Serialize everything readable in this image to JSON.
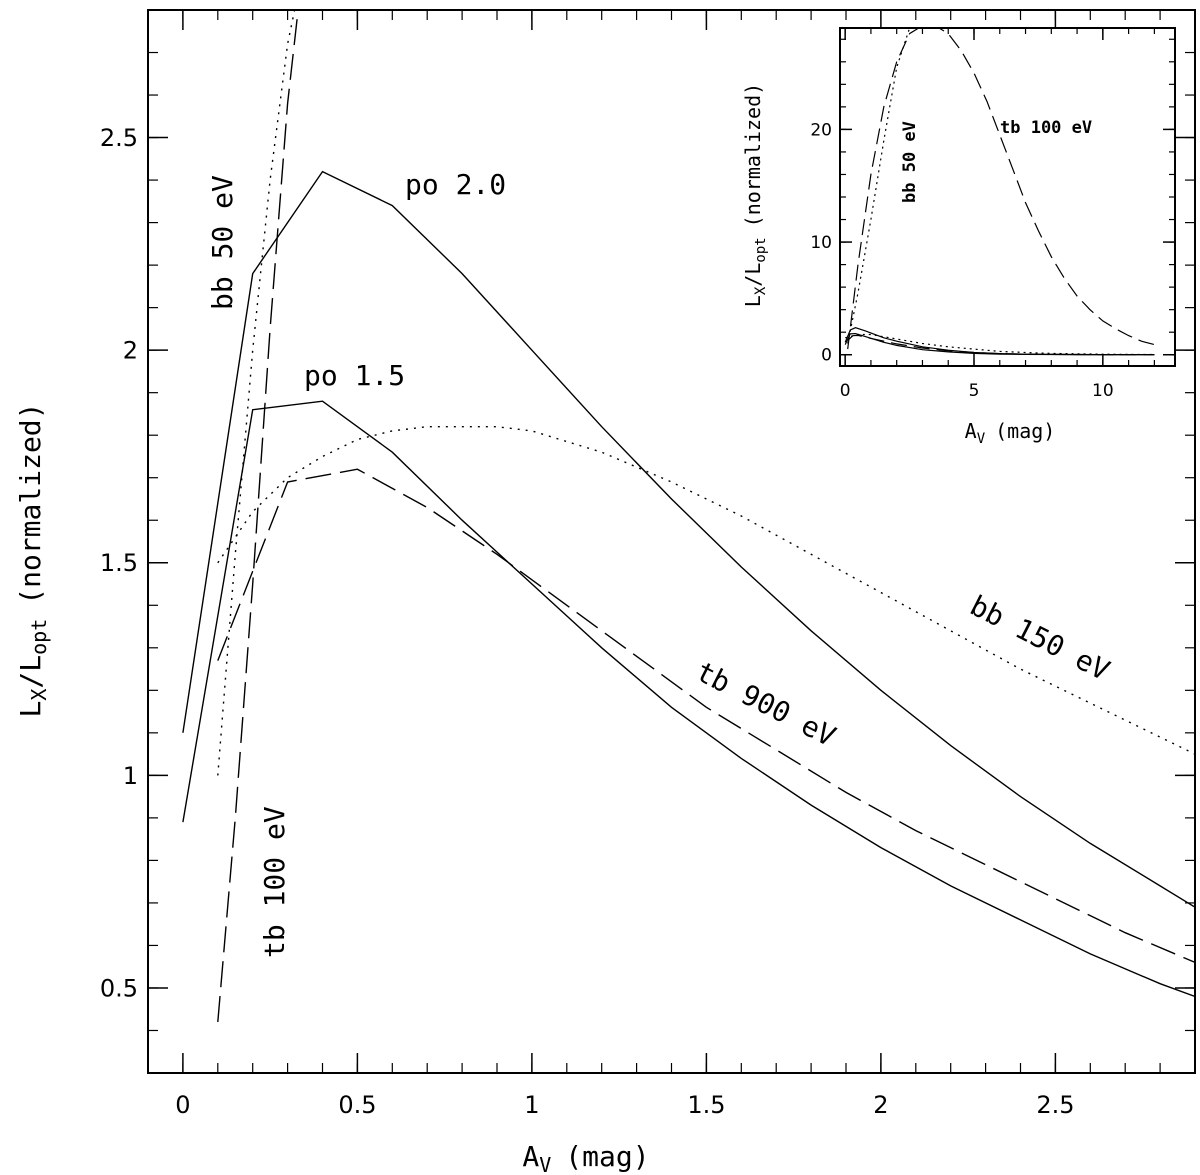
{
  "chart_data": [
    {
      "type": "line",
      "xlabel": "A",
      "xlabel_sub": "V",
      "xlabel_unit": "(mag)",
      "ylabel": "L",
      "ylabel_sub1": "X",
      "ylabel_mid": "/L",
      "ylabel_sub2": "opt",
      "ylabel_unit": "(normalized)",
      "xlim": [
        -0.1,
        2.9
      ],
      "ylim": [
        0.3,
        2.8
      ],
      "xticks": [
        0,
        0.5,
        1,
        1.5,
        2,
        2.5
      ],
      "xtick_labels": [
        "0",
        "0.5",
        "1",
        "1.5",
        "2",
        "2.5"
      ],
      "yticks": [
        0.5,
        1,
        1.5,
        2,
        2.5
      ],
      "ytick_labels": [
        "0.5",
        "1",
        "1.5",
        "2",
        "2.5"
      ],
      "series": [
        {
          "name": "po 2.0",
          "style": "solid",
          "x": [
            0,
            0.2,
            0.4,
            0.6,
            0.8,
            1.0,
            1.2,
            1.4,
            1.6,
            1.8,
            2.0,
            2.2,
            2.4,
            2.6,
            2.8,
            2.9
          ],
          "y": [
            1.1,
            2.18,
            2.42,
            2.34,
            2.18,
            2.0,
            1.82,
            1.65,
            1.49,
            1.34,
            1.2,
            1.07,
            0.95,
            0.84,
            0.74,
            0.69
          ]
        },
        {
          "name": "po 1.5",
          "style": "solid",
          "x": [
            0,
            0.2,
            0.4,
            0.6,
            0.8,
            1.0,
            1.2,
            1.4,
            1.6,
            1.8,
            2.0,
            2.2,
            2.4,
            2.6,
            2.8,
            2.9
          ],
          "y": [
            0.89,
            1.86,
            1.88,
            1.76,
            1.6,
            1.45,
            1.3,
            1.16,
            1.04,
            0.93,
            0.83,
            0.74,
            0.66,
            0.58,
            0.51,
            0.48
          ]
        },
        {
          "name": "tb 900 eV",
          "style": "dashed",
          "x": [
            0.1,
            0.2,
            0.3,
            0.5,
            0.7,
            0.9,
            1.1,
            1.3,
            1.5,
            1.7,
            1.9,
            2.1,
            2.3,
            2.5,
            2.7,
            2.9
          ],
          "y": [
            1.27,
            1.48,
            1.69,
            1.72,
            1.63,
            1.52,
            1.4,
            1.28,
            1.16,
            1.06,
            0.96,
            0.87,
            0.79,
            0.71,
            0.63,
            0.56
          ]
        },
        {
          "name": "bb 150 eV",
          "style": "dotted",
          "x": [
            0.1,
            0.2,
            0.3,
            0.4,
            0.5,
            0.6,
            0.7,
            0.8,
            0.9,
            1.0,
            1.2,
            1.4,
            1.6,
            1.8,
            2.0,
            2.2,
            2.4,
            2.6,
            2.8,
            2.9
          ],
          "y": [
            1.5,
            1.62,
            1.7,
            1.75,
            1.79,
            1.81,
            1.82,
            1.82,
            1.82,
            1.81,
            1.76,
            1.69,
            1.61,
            1.52,
            1.43,
            1.34,
            1.25,
            1.17,
            1.09,
            1.05
          ]
        },
        {
          "name": "bb 50 eV",
          "style": "dotted",
          "x": [
            0.1,
            0.15,
            0.2,
            0.25,
            0.3,
            0.32
          ],
          "y": [
            1.0,
            1.52,
            2.0,
            2.4,
            2.72,
            2.8
          ]
        },
        {
          "name": "tb 100 eV",
          "style": "dashed",
          "x": [
            0.1,
            0.15,
            0.2,
            0.25,
            0.3,
            0.33
          ],
          "y": [
            0.42,
            0.9,
            1.45,
            2.05,
            2.58,
            2.8
          ]
        }
      ],
      "annotations": [
        "po 2.0",
        "po 1.5",
        "bb 150 eV",
        "tb 900 eV",
        "bb 50 eV",
        "tb 100 eV"
      ]
    },
    {
      "type": "line",
      "role": "inset",
      "xlabel": "A",
      "xlabel_sub": "V",
      "xlabel_unit": "(mag)",
      "ylabel": "L",
      "ylabel_sub1": "X",
      "ylabel_mid": "/L",
      "ylabel_sub2": "opt",
      "ylabel_unit": "(normalized)",
      "xlim": [
        -0.2,
        12.8
      ],
      "ylim": [
        -1,
        29
      ],
      "xticks": [
        0,
        5,
        10
      ],
      "xtick_labels": [
        "0",
        "5",
        "10"
      ],
      "yticks": [
        0,
        10,
        20
      ],
      "ytick_labels": [
        "0",
        "10",
        "20"
      ],
      "series": [
        {
          "name": "tb 100 eV",
          "style": "dashed",
          "x": [
            0.1,
            0.5,
            1,
            1.5,
            2,
            2.5,
            3,
            3.5,
            4,
            4.5,
            5,
            5.5,
            6,
            6.5,
            7,
            7.5,
            8,
            8.5,
            9,
            9.5,
            10,
            10.5,
            11,
            11.5,
            12
          ],
          "y": [
            0.5,
            8,
            16,
            22,
            26,
            28.5,
            29.2,
            29.2,
            28.5,
            27,
            25,
            22.5,
            19.5,
            16.5,
            13.5,
            11,
            8.7,
            6.8,
            5.2,
            4.0,
            3.0,
            2.3,
            1.7,
            1.2,
            0.9
          ]
        },
        {
          "name": "bb 50 eV",
          "style": "dotted",
          "x": [
            0.1,
            0.5,
            1,
            1.5,
            2,
            2.5,
            3
          ],
          "y": [
            1.0,
            5.5,
            12,
            19,
            25.5,
            29,
            29.5
          ]
        },
        {
          "name": "bb 150 eV",
          "style": "dotted",
          "x": [
            0,
            0.5,
            1,
            2,
            3,
            4,
            5,
            6,
            7,
            8,
            9,
            10,
            11,
            12
          ],
          "y": [
            1.5,
            1.8,
            1.8,
            1.4,
            1.0,
            0.7,
            0.5,
            0.3,
            0.2,
            0.12,
            0.08,
            0.05,
            0.03,
            0.02
          ]
        },
        {
          "name": "po 2.0",
          "style": "solid",
          "x": [
            0,
            0.2,
            0.4,
            0.8,
            1.5,
            2,
            3,
            4,
            5,
            6,
            7,
            8,
            9,
            10,
            11,
            12
          ],
          "y": [
            1.1,
            2.2,
            2.4,
            2.1,
            1.5,
            1.2,
            0.7,
            0.4,
            0.2,
            0.1,
            0.05,
            0.03,
            0.02,
            0.01,
            0.01,
            0.01
          ]
        },
        {
          "name": "po 1.5",
          "style": "solid",
          "x": [
            0,
            0.2,
            0.4,
            0.8,
            1.5,
            2,
            3,
            4,
            5,
            6,
            7,
            8,
            9,
            10,
            11,
            12
          ],
          "y": [
            0.9,
            1.86,
            1.88,
            1.6,
            1.1,
            0.83,
            0.45,
            0.25,
            0.12,
            0.06,
            0.03,
            0.02,
            0.01,
            0.01,
            0.01,
            0.01
          ]
        },
        {
          "name": "tb 900 eV",
          "style": "dashed",
          "x": [
            0.1,
            0.3,
            0.5,
            1,
            2,
            3,
            4,
            5,
            6,
            7,
            8,
            9,
            10,
            11,
            12
          ],
          "y": [
            1.27,
            1.69,
            1.72,
            1.45,
            0.96,
            0.6,
            0.35,
            0.2,
            0.1,
            0.05,
            0.03,
            0.02,
            0.01,
            0.01,
            0.01
          ]
        }
      ],
      "annotations": [
        "bb 50 eV",
        "tb 100 eV"
      ]
    }
  ]
}
